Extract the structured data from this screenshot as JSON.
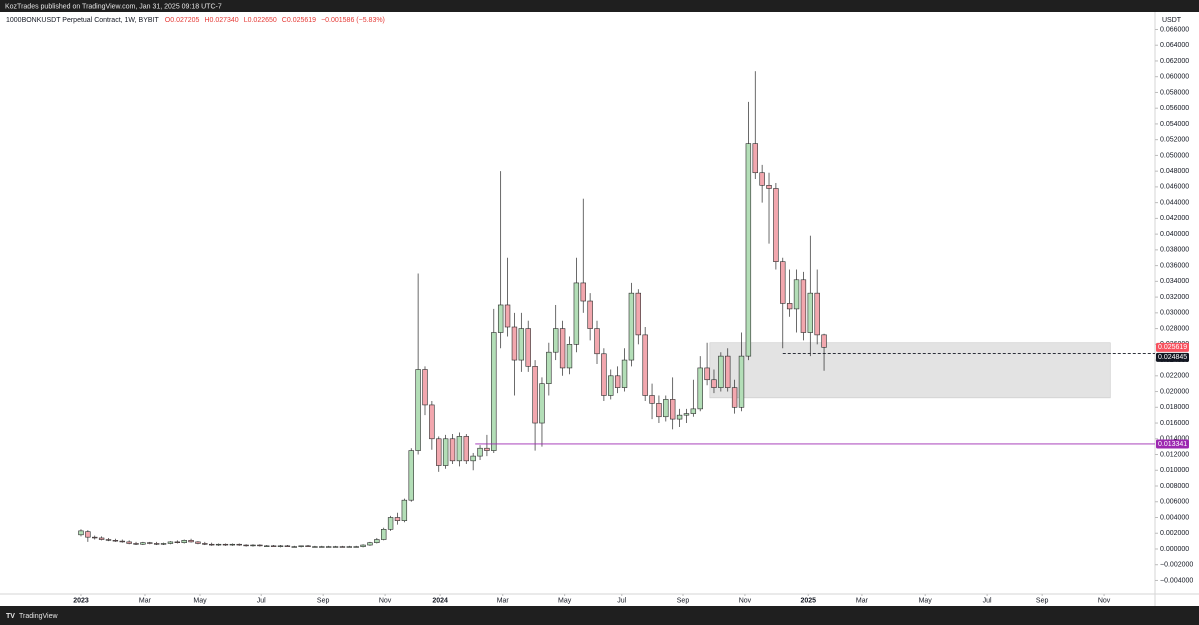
{
  "header": "KozTrades published on TradingView.com, Jan 31, 2025 09:18 UTC-7",
  "footer": "TradingView",
  "chart_data": {
    "type": "candlestick",
    "title": "1000BONKUSDT Perpetual Contract, 1W, BYBIT",
    "legend": [
      "O0.027205",
      "H0.027340",
      "L0.022650",
      "C0.025619",
      "−0.001586 (−5.83%)"
    ],
    "legend_color": "#e53935",
    "y_axis_label": "USDT",
    "up_color": "#b3deb7",
    "down_color": "#f2a7ae",
    "border_color": "#2b2b2b",
    "open": [
      0.0018,
      0.0022,
      0.0015,
      0.0014,
      0.0012,
      0.0011,
      0.001,
      0.0009,
      0.0007,
      0.0006,
      0.0008,
      0.0007,
      0.0006,
      0.0007,
      0.0009,
      0.0008,
      0.0011,
      0.0009,
      0.0007,
      0.0006,
      0.0005,
      0.0006,
      0.0005,
      0.0006,
      0.0005,
      0.0004,
      0.0005,
      0.0004,
      0.0004,
      0.0003,
      0.0004,
      0.0003,
      0.0003,
      0.0004,
      0.0003,
      0.0003,
      0.0003,
      0.0003,
      0.0003,
      0.0002,
      0.0003,
      0.0003,
      0.0005,
      0.0008,
      0.0012,
      0.0025,
      0.004,
      0.0036,
      0.0062,
      0.0125,
      0.0228,
      0.0183,
      0.014,
      0.0106,
      0.014,
      0.0112,
      0.0143,
      0.0112,
      0.0118,
      0.0128,
      0.0125,
      0.0275,
      0.031,
      0.0282,
      0.024,
      0.028,
      0.0232,
      0.016,
      0.021,
      0.025,
      0.028,
      0.023,
      0.026,
      0.0338,
      0.0315,
      0.028,
      0.0248,
      0.0195,
      0.022,
      0.0205,
      0.024,
      0.0325,
      0.0272,
      0.0195,
      0.0185,
      0.0168,
      0.019,
      0.0165,
      0.017,
      0.0172,
      0.0178,
      0.023,
      0.0215,
      0.0205,
      0.0245,
      0.0205,
      0.018,
      0.0245,
      0.0515,
      0.0478,
      0.0462,
      0.0458,
      0.0365,
      0.0312,
      0.0305,
      0.0342,
      0.0275,
      0.0325,
      0.027205
    ],
    "high": [
      0.0025,
      0.0024,
      0.0017,
      0.0016,
      0.0014,
      0.0013,
      0.0012,
      0.0011,
      0.0009,
      0.0009,
      0.0009,
      0.0009,
      0.0008,
      0.001,
      0.0011,
      0.0012,
      0.0013,
      0.001,
      0.0009,
      0.0008,
      0.0007,
      0.0007,
      0.0007,
      0.0007,
      0.0006,
      0.0006,
      0.0006,
      0.0005,
      0.0005,
      0.0005,
      0.0005,
      0.0004,
      0.0004,
      0.0005,
      0.0004,
      0.0004,
      0.0004,
      0.0004,
      0.0004,
      0.0004,
      0.0004,
      0.0006,
      0.0009,
      0.0014,
      0.0027,
      0.0042,
      0.0046,
      0.0064,
      0.0128,
      0.035,
      0.0232,
      0.0188,
      0.0143,
      0.0145,
      0.0146,
      0.0148,
      0.0146,
      0.0122,
      0.0132,
      0.0145,
      0.0305,
      0.048,
      0.037,
      0.03,
      0.03,
      0.029,
      0.024,
      0.0218,
      0.0262,
      0.031,
      0.029,
      0.027,
      0.037,
      0.0445,
      0.0325,
      0.029,
      0.0255,
      0.0228,
      0.0232,
      0.0255,
      0.0338,
      0.033,
      0.0282,
      0.021,
      0.0195,
      0.0195,
      0.0218,
      0.0178,
      0.0178,
      0.0215,
      0.0245,
      0.0262,
      0.0228,
      0.025,
      0.0255,
      0.0215,
      0.0275,
      0.0568,
      0.0607,
      0.0488,
      0.0478,
      0.0465,
      0.037,
      0.0355,
      0.0355,
      0.0352,
      0.0398,
      0.0355,
      0.02734
    ],
    "low": [
      0.0016,
      0.0009,
      0.0012,
      0.0011,
      0.001,
      0.0009,
      0.0008,
      0.0006,
      0.0005,
      0.0005,
      0.0006,
      0.0005,
      0.0005,
      0.0006,
      0.0007,
      0.0007,
      0.0008,
      0.0006,
      0.0005,
      0.0004,
      0.0004,
      0.0004,
      0.0004,
      0.0004,
      0.0003,
      0.0003,
      0.0003,
      0.0003,
      0.0003,
      0.0002,
      0.0003,
      0.0002,
      0.0002,
      0.0003,
      0.0002,
      0.0002,
      0.0002,
      0.0002,
      0.0002,
      0.0002,
      0.0002,
      0.0002,
      0.0004,
      0.0007,
      0.0011,
      0.0023,
      0.0031,
      0.0034,
      0.006,
      0.012,
      0.017,
      0.0126,
      0.0098,
      0.0102,
      0.0108,
      0.0105,
      0.0108,
      0.01,
      0.0113,
      0.0118,
      0.0122,
      0.0255,
      0.027,
      0.0195,
      0.0225,
      0.0225,
      0.0125,
      0.013,
      0.0195,
      0.024,
      0.022,
      0.0222,
      0.025,
      0.03,
      0.0265,
      0.0235,
      0.0188,
      0.019,
      0.0198,
      0.02,
      0.0232,
      0.026,
      0.0188,
      0.0165,
      0.016,
      0.0162,
      0.0152,
      0.0155,
      0.016,
      0.0168,
      0.0175,
      0.0208,
      0.0198,
      0.02,
      0.02,
      0.0172,
      0.0175,
      0.024,
      0.047,
      0.044,
      0.0388,
      0.0355,
      0.0255,
      0.0295,
      0.0275,
      0.0265,
      0.0245,
      0.026,
      0.02265
    ],
    "close": [
      0.0023,
      0.0015,
      0.0014,
      0.0012,
      0.0011,
      0.001,
      0.0009,
      0.0007,
      0.0006,
      0.0008,
      0.0007,
      0.0006,
      0.0007,
      0.0009,
      0.0008,
      0.0011,
      0.0009,
      0.0007,
      0.0006,
      0.0005,
      0.0006,
      0.0005,
      0.0006,
      0.0005,
      0.0004,
      0.0005,
      0.0004,
      0.0004,
      0.0003,
      0.0004,
      0.0003,
      0.0003,
      0.0004,
      0.0003,
      0.0003,
      0.0003,
      0.0003,
      0.0003,
      0.0002,
      0.0003,
      0.0003,
      0.0005,
      0.0008,
      0.0012,
      0.0025,
      0.004,
      0.0036,
      0.0062,
      0.0125,
      0.0228,
      0.0183,
      0.014,
      0.0106,
      0.014,
      0.0112,
      0.0143,
      0.0112,
      0.0118,
      0.0128,
      0.0125,
      0.0275,
      0.031,
      0.0282,
      0.024,
      0.028,
      0.0232,
      0.016,
      0.021,
      0.025,
      0.028,
      0.023,
      0.026,
      0.0338,
      0.0315,
      0.028,
      0.0248,
      0.0195,
      0.022,
      0.0205,
      0.024,
      0.0325,
      0.0272,
      0.0195,
      0.0185,
      0.0168,
      0.019,
      0.0165,
      0.017,
      0.0172,
      0.0178,
      0.023,
      0.0215,
      0.0205,
      0.0245,
      0.0205,
      0.018,
      0.0245,
      0.0515,
      0.0478,
      0.0462,
      0.0458,
      0.0365,
      0.0312,
      0.0305,
      0.0342,
      0.0275,
      0.0325,
      0.0272,
      0.025619
    ],
    "xlim": [
      -11.77,
      156.1
    ],
    "xticks": [
      {
        "value": 0,
        "label": "2023"
      },
      {
        "value": 9.3,
        "label": "Mar"
      },
      {
        "value": 17.3,
        "label": "May"
      },
      {
        "value": 26.2,
        "label": "Jul"
      },
      {
        "value": 35.2,
        "label": "Sep"
      },
      {
        "value": 44.2,
        "label": "Nov"
      },
      {
        "value": 52.2,
        "label": "2024"
      },
      {
        "value": 61.3,
        "label": "Mar"
      },
      {
        "value": 70.3,
        "label": "May"
      },
      {
        "value": 78.6,
        "label": "Jul"
      },
      {
        "value": 87.5,
        "label": "Sep"
      },
      {
        "value": 96.5,
        "label": "Nov"
      },
      {
        "value": 105.7,
        "label": "2025"
      },
      {
        "value": 113.5,
        "label": "Mar"
      },
      {
        "value": 122.7,
        "label": "May"
      },
      {
        "value": 131.7,
        "label": "Jul"
      },
      {
        "value": 139.7,
        "label": "Sep"
      },
      {
        "value": 148.7,
        "label": "Nov"
      }
    ],
    "ylim": [
      -0.00572,
      0.06822
    ],
    "yticks": [
      {
        "value": -0.004,
        "label": "−0.004000"
      },
      {
        "value": -0.002,
        "label": "−0.002000"
      },
      {
        "value": 0,
        "label": "0.000000"
      },
      {
        "value": 0.002,
        "label": "0.002000"
      },
      {
        "value": 0.004,
        "label": "0.004000"
      },
      {
        "value": 0.006,
        "label": "0.006000"
      },
      {
        "value": 0.008,
        "label": "0.008000"
      },
      {
        "value": 0.01,
        "label": "0.010000"
      },
      {
        "value": 0.012,
        "label": "0.012000"
      },
      {
        "value": 0.014,
        "label": "0.014000"
      },
      {
        "value": 0.016,
        "label": "0.016000"
      },
      {
        "value": 0.018,
        "label": "0.018000"
      },
      {
        "value": 0.02,
        "label": "0.020000"
      },
      {
        "value": 0.022,
        "label": "0.022000"
      },
      {
        "value": 0.024,
        "label": "0.024000"
      },
      {
        "value": 0.026,
        "label": "0.026000"
      },
      {
        "value": 0.028,
        "label": "0.028000"
      },
      {
        "value": 0.03,
        "label": "0.030000"
      },
      {
        "value": 0.032,
        "label": "0.032000"
      },
      {
        "value": 0.034,
        "label": "0.034000"
      },
      {
        "value": 0.036,
        "label": "0.036000"
      },
      {
        "value": 0.038,
        "label": "0.038000"
      },
      {
        "value": 0.04,
        "label": "0.040000"
      },
      {
        "value": 0.042,
        "label": "0.042000"
      },
      {
        "value": 0.044,
        "label": "0.044000"
      },
      {
        "value": 0.046,
        "label": "0.046000"
      },
      {
        "value": 0.048,
        "label": "0.048000"
      },
      {
        "value": 0.05,
        "label": "0.050000"
      },
      {
        "value": 0.052,
        "label": "0.052000"
      },
      {
        "value": 0.054,
        "label": "0.054000"
      },
      {
        "value": 0.056,
        "label": "0.056000"
      },
      {
        "value": 0.058,
        "label": "0.058000"
      },
      {
        "value": 0.06,
        "label": "0.060000"
      },
      {
        "value": 0.062,
        "label": "0.062000"
      },
      {
        "value": 0.064,
        "label": "0.064000"
      },
      {
        "value": 0.066,
        "label": "0.066000"
      }
    ],
    "grid": false,
    "zone": {
      "x": [
        91.4,
        149.6
      ],
      "y": [
        0.0192,
        0.0262
      ],
      "color": "#e3e3e3"
    },
    "lines": [
      {
        "value": 0.013341,
        "x_from": 57.3,
        "color": "#9c27b0",
        "style": "solid"
      },
      {
        "value": 0.024845,
        "x_from": 102,
        "color": "#131722",
        "style": "dashed"
      }
    ],
    "last_price": {
      "value": 0.025619,
      "color": "#f7525f"
    }
  }
}
